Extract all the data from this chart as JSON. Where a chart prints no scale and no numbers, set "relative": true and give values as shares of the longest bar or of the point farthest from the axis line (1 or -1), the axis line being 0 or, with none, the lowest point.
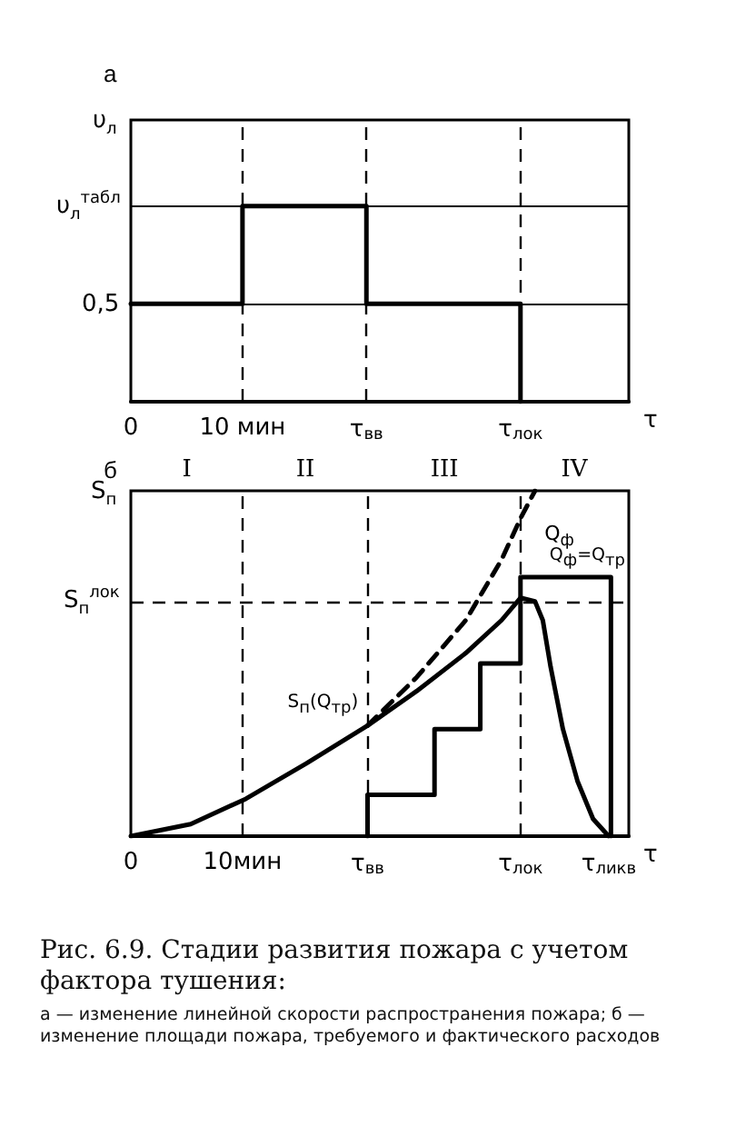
{
  "chart_data": [
    {
      "type": "step",
      "title": "а",
      "xlabel": "τ",
      "ylabel": "υ$_{л}$",
      "relative": true,
      "x": [
        0,
        10,
        21.1,
        34.9
      ],
      "series": [
        {
          "color": "#000000",
          "values": [
            0.5,
            1,
            0.5,
            0
          ]
        }
      ],
      "xlim": [
        0,
        44.6
      ],
      "xticks": [
        0,
        {
          "value": 10,
          "label": "10 мин"
        },
        {
          "value": 21.1,
          "label": "τ$_{вв}$"
        },
        {
          "value": 34.9,
          "label": "τ$_{лок}$"
        }
      ],
      "marker": "none",
      "ref_lines": [
        {
          "axis": "x",
          "value": 10,
          "line_style": "dashed"
        },
        {
          "axis": "x",
          "value": 21.1,
          "line_style": "dashed"
        },
        {
          "axis": "x",
          "value": 34.9,
          "line_style": "dashed"
        },
        {
          "axis": "y",
          "value": 0.5,
          "label": "0,5",
          "line_style": "solid"
        },
        {
          "axis": "y",
          "value": 1,
          "label": "υ$_{л}$$^{табл}$",
          "line_style": "solid"
        }
      ]
    },
    {
      "type": "line",
      "title": "б",
      "xlabel": "τ",
      "ylabel": "S$_{п}$",
      "relative": true,
      "series": [
        {
          "color": "#000000",
          "line_style": "solid",
          "x": [
            0,
            5.36,
            10.3,
            15.7,
            21.2,
            25.6,
            30.0,
            33.2,
            34.9,
            36.2,
            36.9,
            37.6,
            38.7,
            40.0,
            41.4,
            42.8
          ],
          "values": [
            0,
            0.035,
            0.108,
            0.21,
            0.32,
            0.42,
            0.53,
            0.625,
            0.69,
            0.68,
            0.625,
            0.49,
            0.31,
            0.16,
            0.05,
            0
          ]
        },
        {
          "color": "#000000",
          "line_style": "dashed",
          "x": [
            21.2,
            25.6,
            30.0,
            33.2,
            34.9,
            36.2
          ],
          "values": [
            0.32,
            0.46,
            0.625,
            0.8,
            0.92,
            1.0
          ]
        },
        {
          "type": "step",
          "color": "#000000",
          "line_style": "solid",
          "x": [
            21.2,
            21.2,
            27.2,
            31.3,
            34.9,
            43.0,
            43.0
          ],
          "values": [
            0,
            0.12,
            0.31,
            0.5,
            0.75,
            0.75,
            0
          ]
        }
      ],
      "xlim": [
        0,
        44.6
      ],
      "xticks": [
        0,
        {
          "value": 10,
          "label": "10мин"
        },
        {
          "value": 21.2,
          "label": "τ$_{вв}$"
        },
        {
          "value": 34.9,
          "label": "τ$_{лок}$"
        },
        {
          "value": 42.8,
          "label": "τ$_{ликв}$"
        }
      ],
      "marker": "none",
      "ref_lines": [
        {
          "axis": "x",
          "value": 10,
          "line_style": "dashed"
        },
        {
          "axis": "x",
          "value": 21.2,
          "line_style": "dashed"
        },
        {
          "axis": "x",
          "value": 34.9,
          "line_style": "dashed"
        },
        {
          "axis": "y",
          "value": 0.68,
          "label": "S$_{п}$$^{лок}$",
          "line_style": "dashed"
        }
      ],
      "annotations": [
        {
          "text": "Q$_{ф}$",
          "x": 37.7,
          "y": 0.75
        },
        {
          "text": "Q$_{ф}$=Q$_{тр}$",
          "x": 34.9,
          "y": 0.69
        },
        {
          "text": "S$_{п}$(Q$_{тр}$)",
          "x": 21.2,
          "y": 0.32
        },
        "I",
        "II",
        "III",
        "IV",
        "Рис. 6.9. Стадии развития пожара с учетом фактора тушения:",
        "а — изменение линейной скорости распространения пожара; б — изменение площади пожара, требуемого и фактического расходов"
      ]
    }
  ]
}
